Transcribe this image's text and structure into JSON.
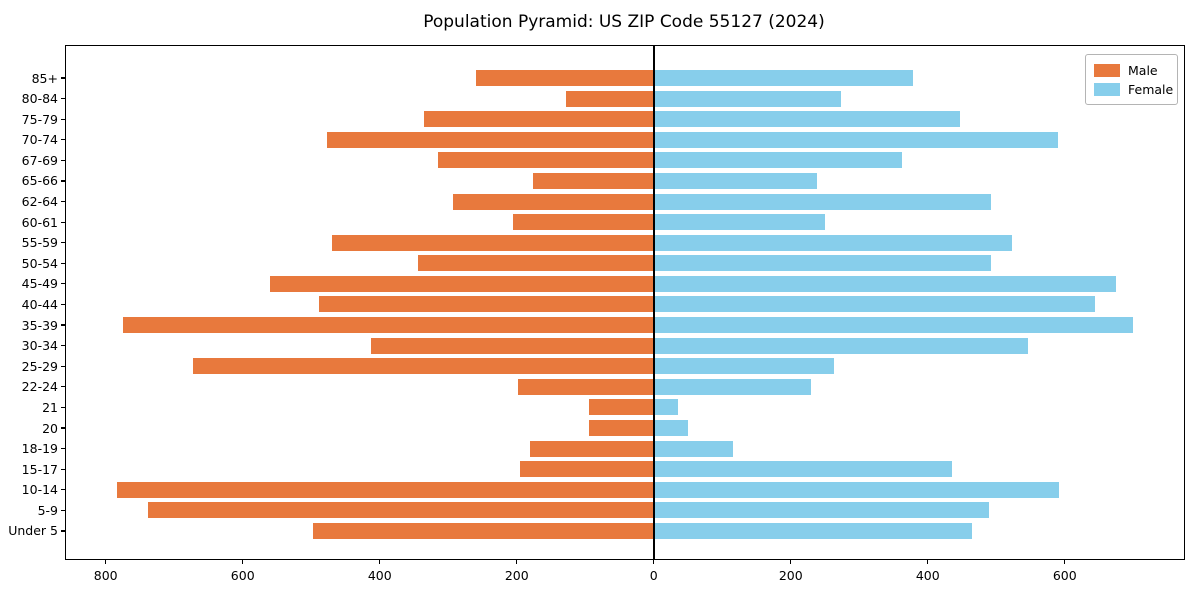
{
  "title": "Population Pyramid: US ZIP Code 55127 (2024)",
  "legend": {
    "position": "upper right",
    "items": [
      {
        "label": "Male",
        "color": "#E8793D"
      },
      {
        "label": "Female",
        "color": "#87CEEB"
      }
    ]
  },
  "chart_data": {
    "type": "bar",
    "orientation": "horizontal",
    "title": "Population Pyramid: US ZIP Code 55127 (2024)",
    "grid": false,
    "zero_line": true,
    "legend_position": "upper right",
    "categories_top_to_bottom": [
      "85+",
      "80-84",
      "75-79",
      "70-74",
      "67-69",
      "65-66",
      "62-64",
      "60-61",
      "55-59",
      "50-54",
      "45-49",
      "40-44",
      "35-39",
      "30-34",
      "25-29",
      "22-24",
      "21",
      "20",
      "18-19",
      "15-17",
      "10-14",
      "5-9",
      "Under 5"
    ],
    "series": [
      {
        "name": "Male",
        "side": "left",
        "color": "#E8793D",
        "values": [
          260,
          128,
          336,
          477,
          315,
          177,
          293,
          205,
          470,
          344,
          560,
          488,
          775,
          413,
          673,
          198,
          95,
          95,
          180,
          196,
          784,
          738,
          498
        ]
      },
      {
        "name": "Female",
        "side": "right",
        "color": "#87CEEB",
        "values": [
          378,
          273,
          447,
          590,
          362,
          238,
          492,
          250,
          523,
          492,
          675,
          644,
          700,
          546,
          263,
          230,
          35,
          50,
          115,
          435,
          591,
          489,
          465
        ]
      }
    ],
    "x_axis": {
      "tick_values": [
        -800,
        -600,
        -400,
        -200,
        0,
        200,
        400,
        600
      ],
      "tick_labels": [
        "800",
        "600",
        "400",
        "200",
        "0",
        "200",
        "400",
        "600"
      ],
      "xlim": [
        -858,
        774
      ]
    }
  }
}
